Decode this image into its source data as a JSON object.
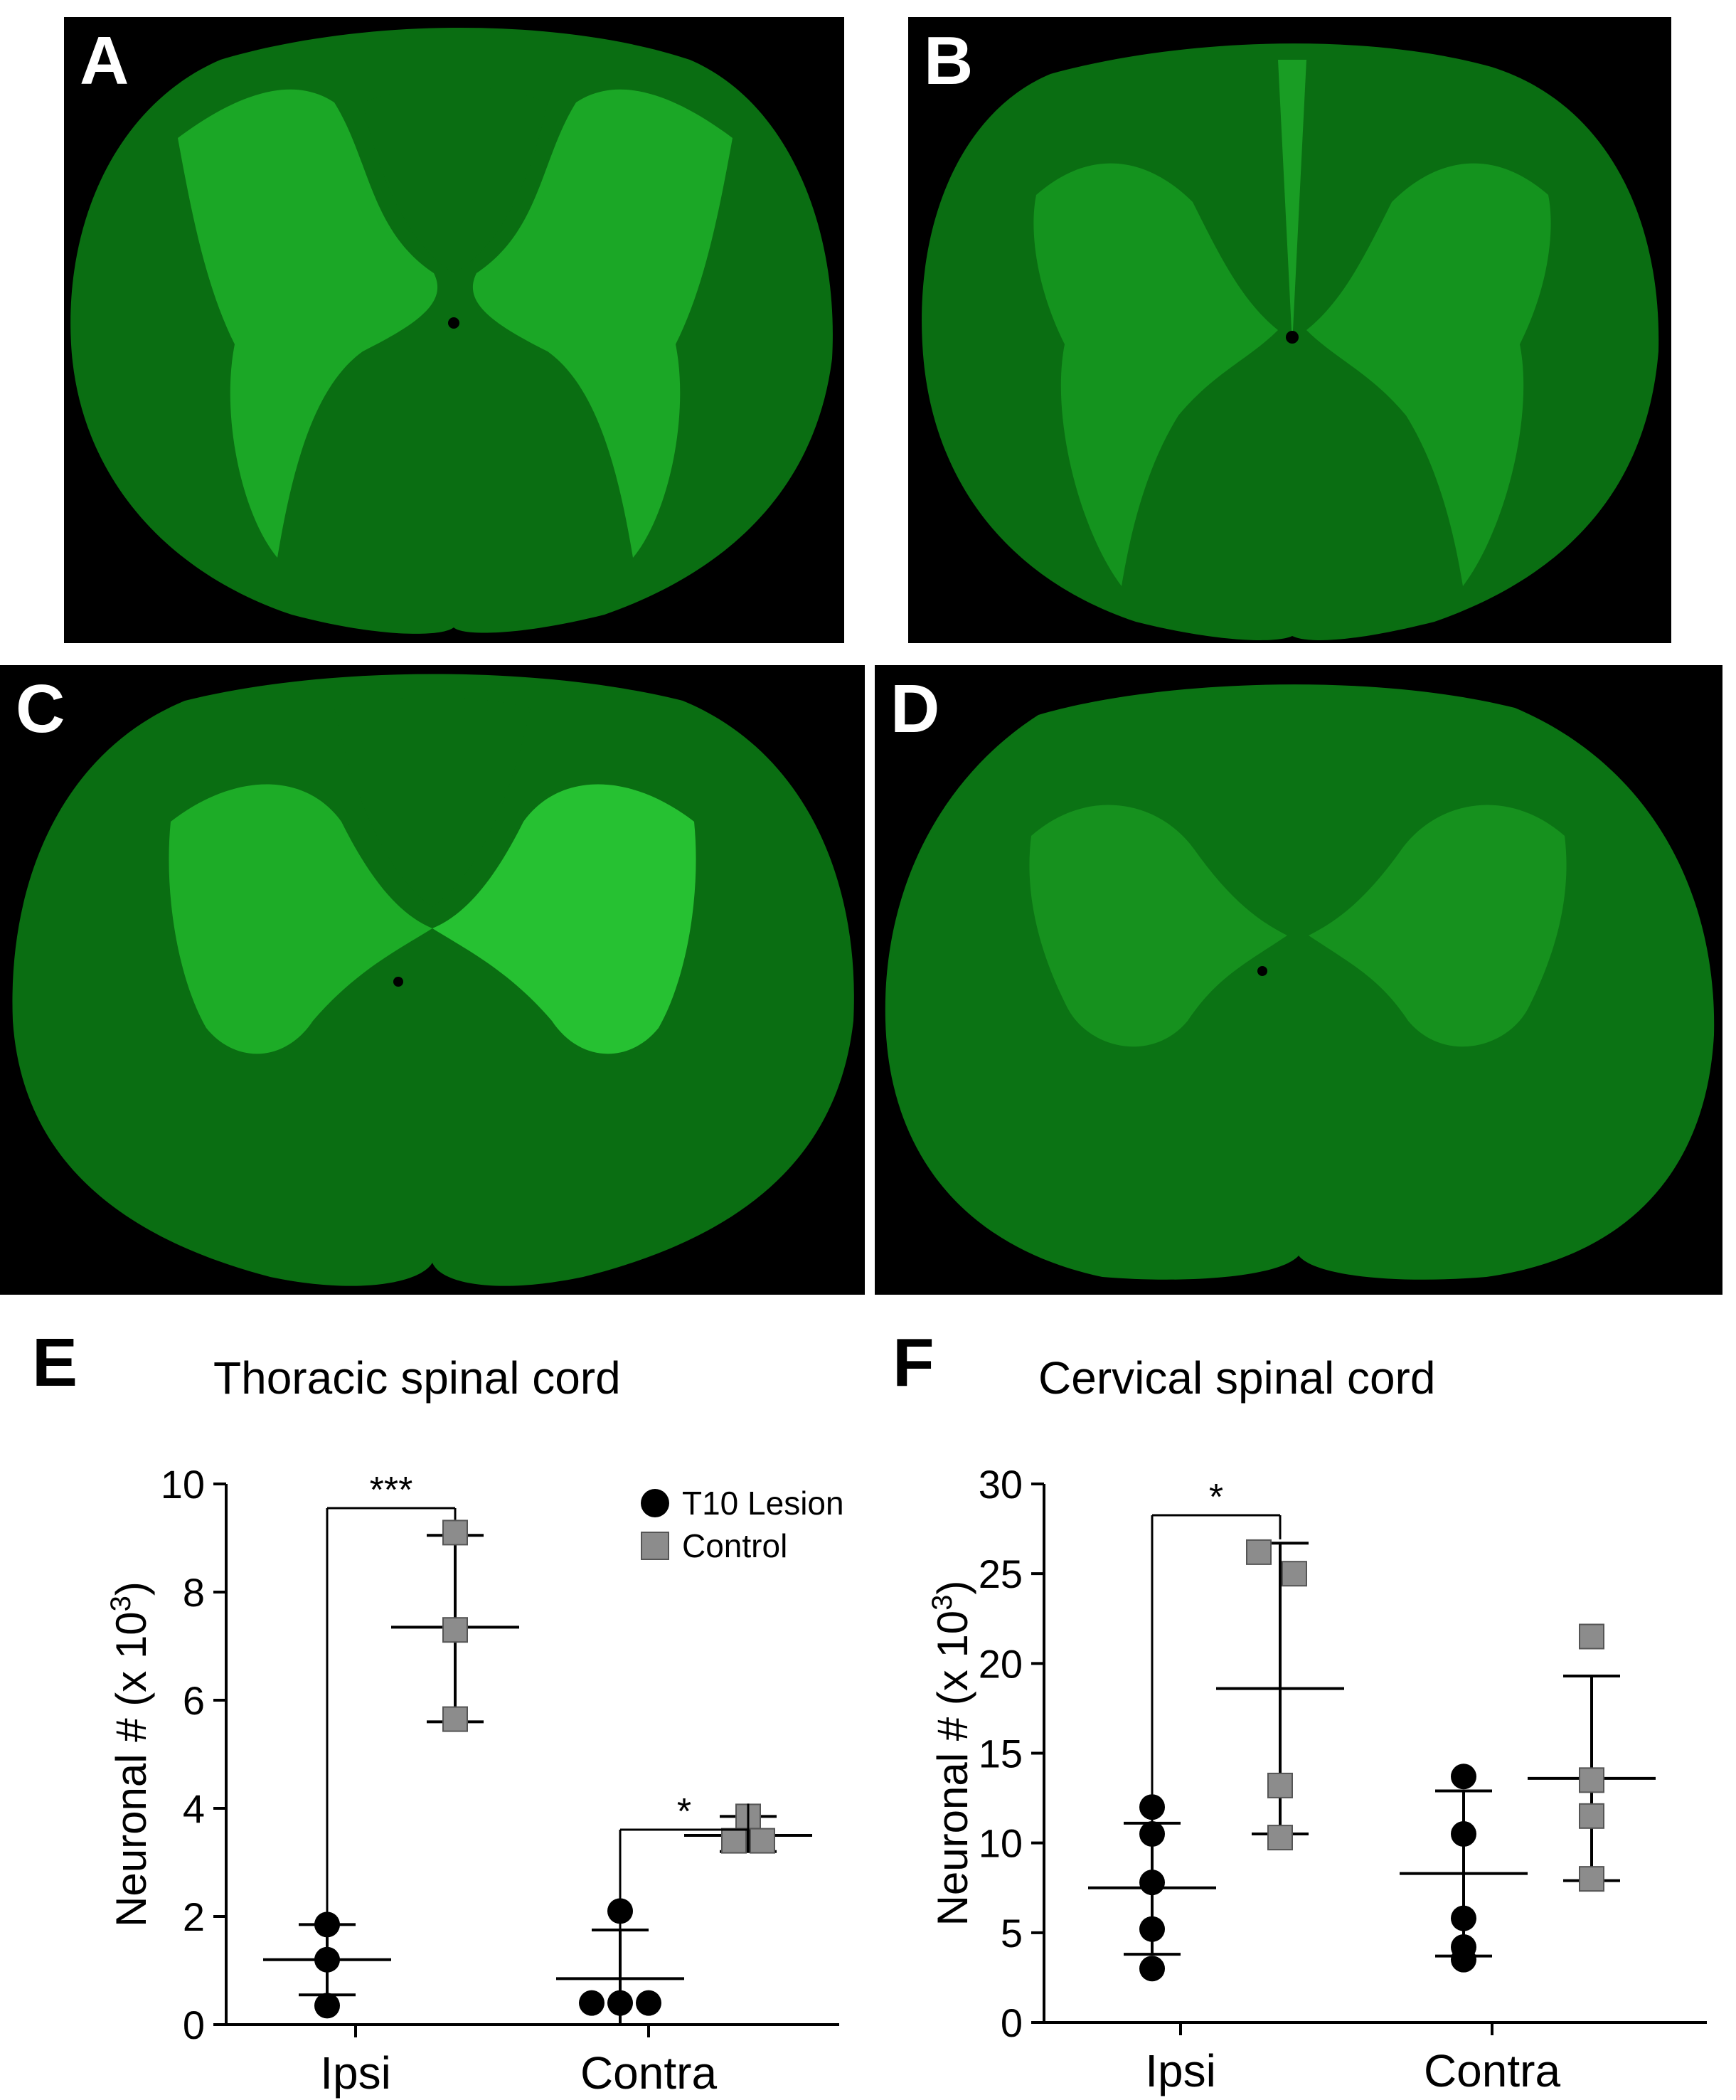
{
  "panels": [
    {
      "letter": "A"
    },
    {
      "letter": "B"
    },
    {
      "letter": "C"
    },
    {
      "letter": "D"
    }
  ],
  "colors": {
    "tissue_white_matter": "#0a6e12",
    "tissue_gray_matter": "#1fb22a",
    "tissue_bright": "#3cf04a",
    "background": "#000000",
    "lesion_marker": "#000000",
    "control_marker": "#8c8c8c"
  },
  "legend": {
    "items": [
      {
        "label": "T10 Lesion",
        "marker": "circle",
        "color": "#000000"
      },
      {
        "label": "Control",
        "marker": "square",
        "color": "#8c8c8c"
      }
    ]
  },
  "chart_data": [
    {
      "letter": "E",
      "type": "scatter",
      "title": "Thoracic spinal cord",
      "ylabel": "Neuronal # (x 10",
      "ylabel_sup": "3",
      "ylabel_close": ")",
      "ylim": [
        0,
        10
      ],
      "yticks": [
        "0",
        "2",
        "4",
        "6",
        "8",
        "10"
      ],
      "categories": [
        "Ipsi",
        "Contra"
      ],
      "series": [
        {
          "name": "T10 Lesion",
          "marker": "circle",
          "groups": [
            {
              "category": "Ipsi",
              "points": [
                1.85,
                1.2,
                0.35
              ],
              "mean": 1.2,
              "sd_low": 0.55,
              "sd_high": 1.85
            },
            {
              "category": "Contra",
              "points": [
                2.1,
                0.4,
                0.4,
                0.4
              ],
              "mean": 0.85,
              "sd_low": 0.0,
              "sd_high": 1.75
            }
          ]
        },
        {
          "name": "Control",
          "marker": "square",
          "groups": [
            {
              "category": "Ipsi",
              "points": [
                9.1,
                7.3,
                5.65
              ],
              "mean": 7.35,
              "sd_low": 5.6,
              "sd_high": 9.05
            },
            {
              "category": "Contra",
              "points": [
                3.85,
                3.4,
                3.4
              ],
              "mean": 3.5,
              "sd_low": 3.2,
              "sd_high": 3.85
            }
          ]
        }
      ],
      "significance": [
        {
          "category": "Ipsi",
          "label": "***"
        },
        {
          "category": "Contra",
          "label": "*"
        }
      ]
    },
    {
      "letter": "F",
      "type": "scatter",
      "title": "Cervical spinal cord",
      "ylabel": "Neuronal # (x 10",
      "ylabel_sup": "3",
      "ylabel_close": ")",
      "ylim": [
        0,
        30
      ],
      "yticks": [
        "0",
        "5",
        "10",
        "15",
        "20",
        "25",
        "30"
      ],
      "categories": [
        "Ipsi",
        "Contra"
      ],
      "series": [
        {
          "name": "T10 Lesion",
          "marker": "circle",
          "groups": [
            {
              "category": "Ipsi",
              "points": [
                12.0,
                10.5,
                7.8,
                5.2,
                3.0
              ],
              "mean": 7.5,
              "sd_low": 3.8,
              "sd_high": 11.1
            },
            {
              "category": "Contra",
              "points": [
                13.7,
                10.5,
                5.8,
                4.2,
                3.5
              ],
              "mean": 8.3,
              "sd_low": 3.7,
              "sd_high": 12.9
            }
          ]
        },
        {
          "name": "Control",
          "marker": "square",
          "groups": [
            {
              "category": "Ipsi",
              "points": [
                26.2,
                25.0,
                13.2,
                10.3
              ],
              "mean": 18.6,
              "sd_low": 10.5,
              "sd_high": 26.7
            },
            {
              "category": "Contra",
              "points": [
                21.5,
                13.5,
                11.5,
                8.0
              ],
              "mean": 13.6,
              "sd_low": 7.9,
              "sd_high": 19.3
            }
          ]
        }
      ],
      "significance": [
        {
          "category": "Ipsi",
          "label": "*"
        }
      ]
    }
  ]
}
